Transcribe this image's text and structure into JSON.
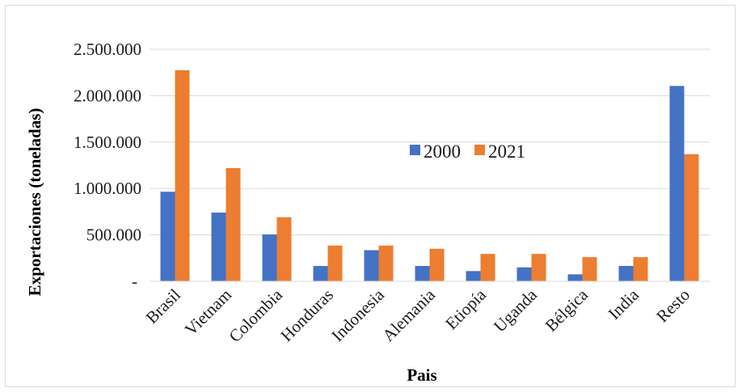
{
  "chart_data": {
    "type": "bar",
    "title": "",
    "xlabel": "Pais",
    "ylabel": "Exportaciones  (toneladas)",
    "categories": [
      "Brasil",
      "Vietnam",
      "Colombia",
      "Honduras",
      "Indonesia",
      "Alemania",
      "Etiopía",
      "Uganda",
      "Bélgica",
      "India",
      "Resto"
    ],
    "series": [
      {
        "name": "2000",
        "color": "#4472C4",
        "values": [
          965000,
          740000,
          505000,
          165000,
          335000,
          165000,
          110000,
          150000,
          75000,
          165000,
          2105000
        ]
      },
      {
        "name": "2021",
        "color": "#ED7D31",
        "values": [
          2275000,
          1220000,
          690000,
          385000,
          385000,
          350000,
          295000,
          295000,
          260000,
          260000,
          1370000
        ]
      }
    ],
    "ylim": [
      0,
      2500000
    ],
    "yticks": [
      {
        "value": 0,
        "label": "-"
      },
      {
        "value": 500000,
        "label": "500.000"
      },
      {
        "value": 1000000,
        "label": "1.000.000"
      },
      {
        "value": 1500000,
        "label": "1.500.000"
      },
      {
        "value": 2000000,
        "label": "2.000.000"
      },
      {
        "value": 2500000,
        "label": "2.500.000"
      }
    ],
    "grid": true,
    "legend_position": "center"
  }
}
